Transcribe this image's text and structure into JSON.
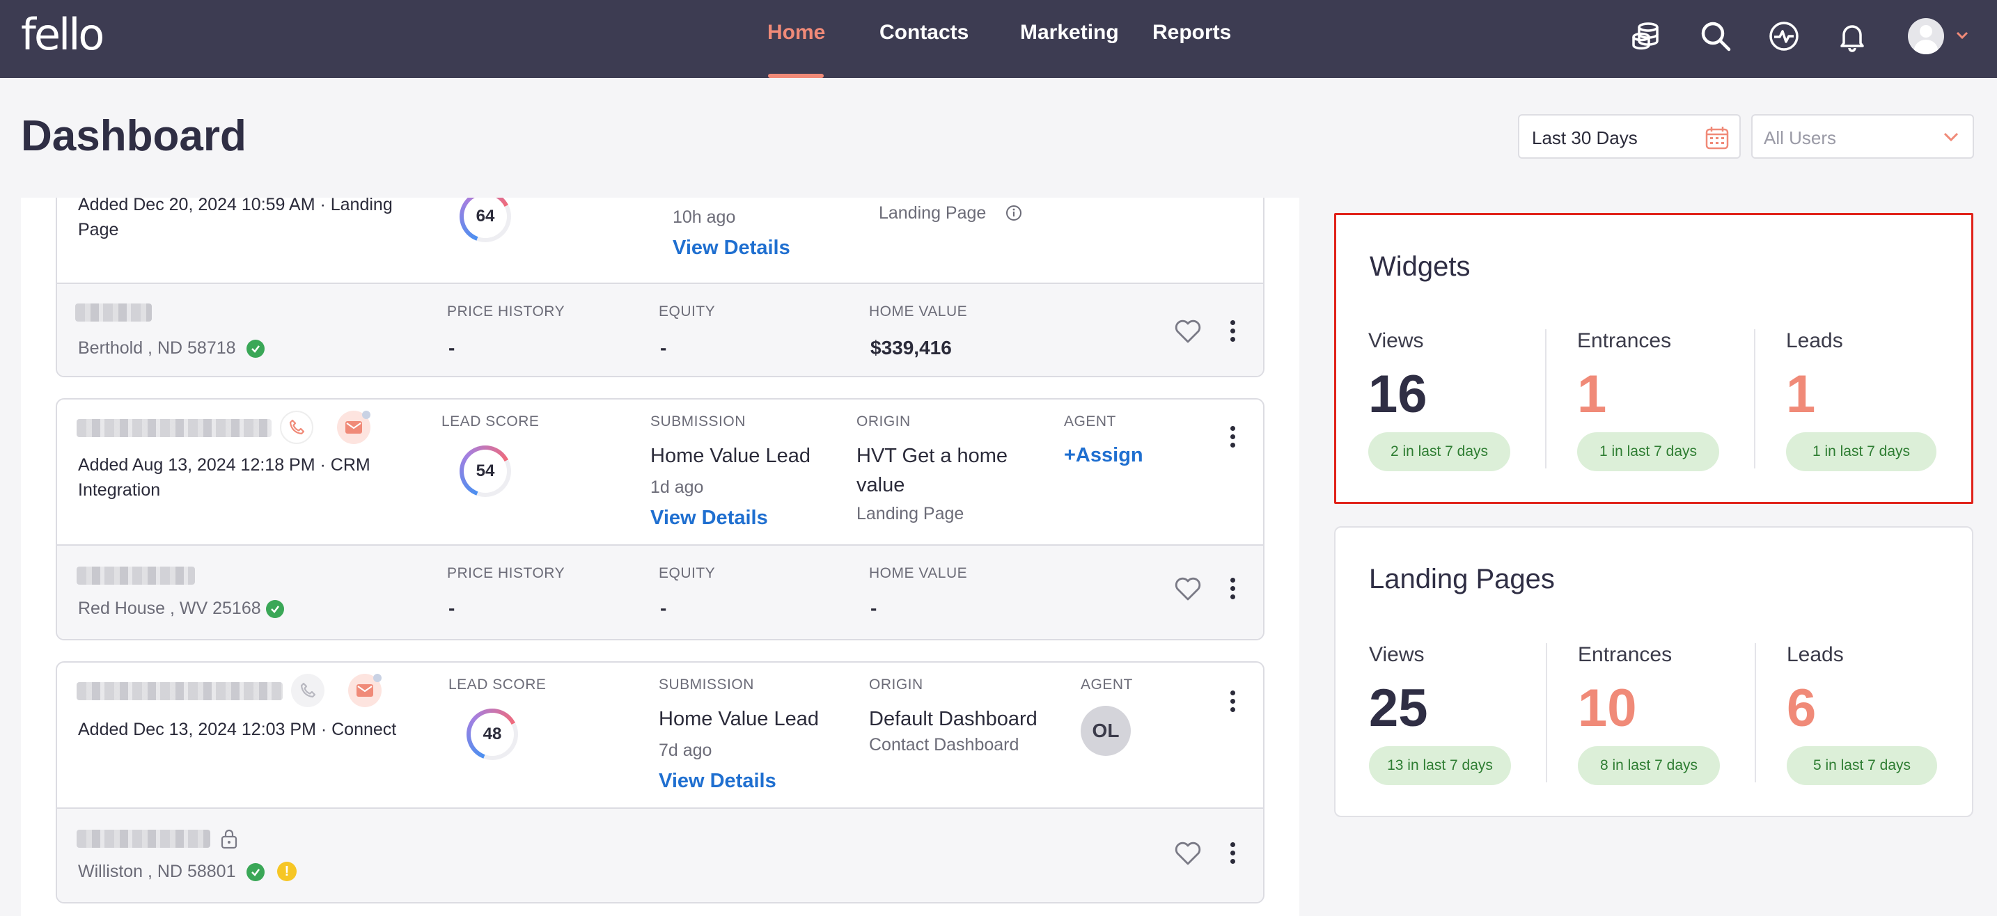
{
  "nav": {
    "logo": "fello",
    "links": [
      "Home",
      "Contacts",
      "Marketing",
      "Reports"
    ],
    "active": "Home"
  },
  "icons": {
    "coins": "coins-icon",
    "search": "search-icon",
    "activity": "activity-icon",
    "bell": "bell-icon",
    "avatar": "user-avatar-icon"
  },
  "header": {
    "title": "Dashboard",
    "date_filter": "Last 30 Days",
    "user_filter_placeholder": "All Users"
  },
  "feed": {
    "card0": {
      "added": "Added Dec 20, 2024 10:59 AM · Landing Page",
      "score": "64",
      "submission_time": "10h ago",
      "view_details": "View Details",
      "origin_sub": "Landing Page",
      "address": "Berthold , ND 58718",
      "price_history_label": "PRICE HISTORY",
      "price_history": "-",
      "equity_label": "EQUITY",
      "equity": "-",
      "home_value_label": "HOME VALUE",
      "home_value": "$339,416"
    },
    "card1": {
      "added": "Added Aug 13, 2024 12:18 PM · CRM Integration",
      "lead_score_label": "LEAD SCORE",
      "score": "54",
      "submission_label": "SUBMISSION",
      "submission": "Home Value Lead",
      "submission_time": "1d ago",
      "view_details": "View Details",
      "origin_label": "ORIGIN",
      "origin": "HVT Get a home value",
      "origin_sub": "Landing Page",
      "agent_label": "AGENT",
      "agent": "+Assign",
      "address": "Red House , WV 25168",
      "price_history_label": "PRICE HISTORY",
      "price_history": "-",
      "equity_label": "EQUITY",
      "equity": "-",
      "home_value_label": "HOME VALUE",
      "home_value": "-"
    },
    "card2": {
      "added": "Added Dec 13, 2024 12:03 PM · Connect",
      "lead_score_label": "LEAD SCORE",
      "score": "48",
      "submission_label": "SUBMISSION",
      "submission": "Home Value Lead",
      "submission_time": "7d ago",
      "view_details": "View Details",
      "origin_label": "ORIGIN",
      "origin": "Default Dashboard",
      "origin_sub": "Contact Dashboard",
      "agent_label": "AGENT",
      "agent_initials": "OL",
      "address": "Williston , ND 58801"
    }
  },
  "widgets": {
    "title": "Widgets",
    "views_label": "Views",
    "views": "16",
    "views_recent": "2 in last 7 days",
    "entrances_label": "Entrances",
    "entrances": "1",
    "entrances_recent": "1 in last 7 days",
    "leads_label": "Leads",
    "leads": "1",
    "leads_recent": "1 in last 7 days"
  },
  "landing_pages": {
    "title": "Landing Pages",
    "views_label": "Views",
    "views": "25",
    "views_recent": "13 in last 7 days",
    "entrances_label": "Entrances",
    "entrances": "10",
    "entrances_recent": "8 in last 7 days",
    "leads_label": "Leads",
    "leads": "6",
    "leads_recent": "5 in last 7 days"
  },
  "colors": {
    "nav_bg": "#3d3c52",
    "accent": "#f08a78",
    "link": "#1f6fd0",
    "highlight_border": "#e0231b",
    "pill_bg": "#dcefd8"
  }
}
